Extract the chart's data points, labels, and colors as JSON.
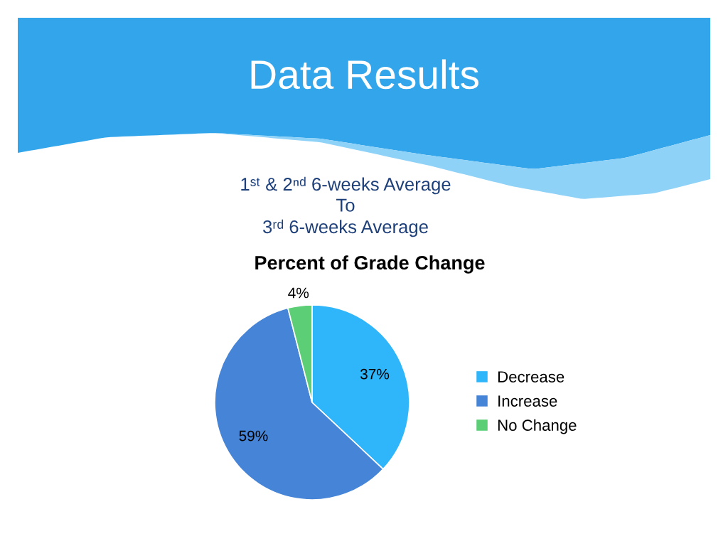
{
  "chart_data": {
    "type": "pie",
    "title": "Data Results",
    "subtitle": "1ˢᵗ & 2ⁿᵈ 6-weeks Average\nTo\n3ʳᵈ 6-weeks Average",
    "annotations": [
      "Percent of Grade Change"
    ],
    "categories": [
      "Decrease",
      "Increase",
      "No Change"
    ],
    "values": [
      37,
      59,
      4
    ],
    "colors": [
      "#2fb5fa",
      "#4584d6",
      "#5ccf76"
    ],
    "value_labels": [
      "37%",
      "59%",
      "4%"
    ],
    "legend": "right"
  }
}
